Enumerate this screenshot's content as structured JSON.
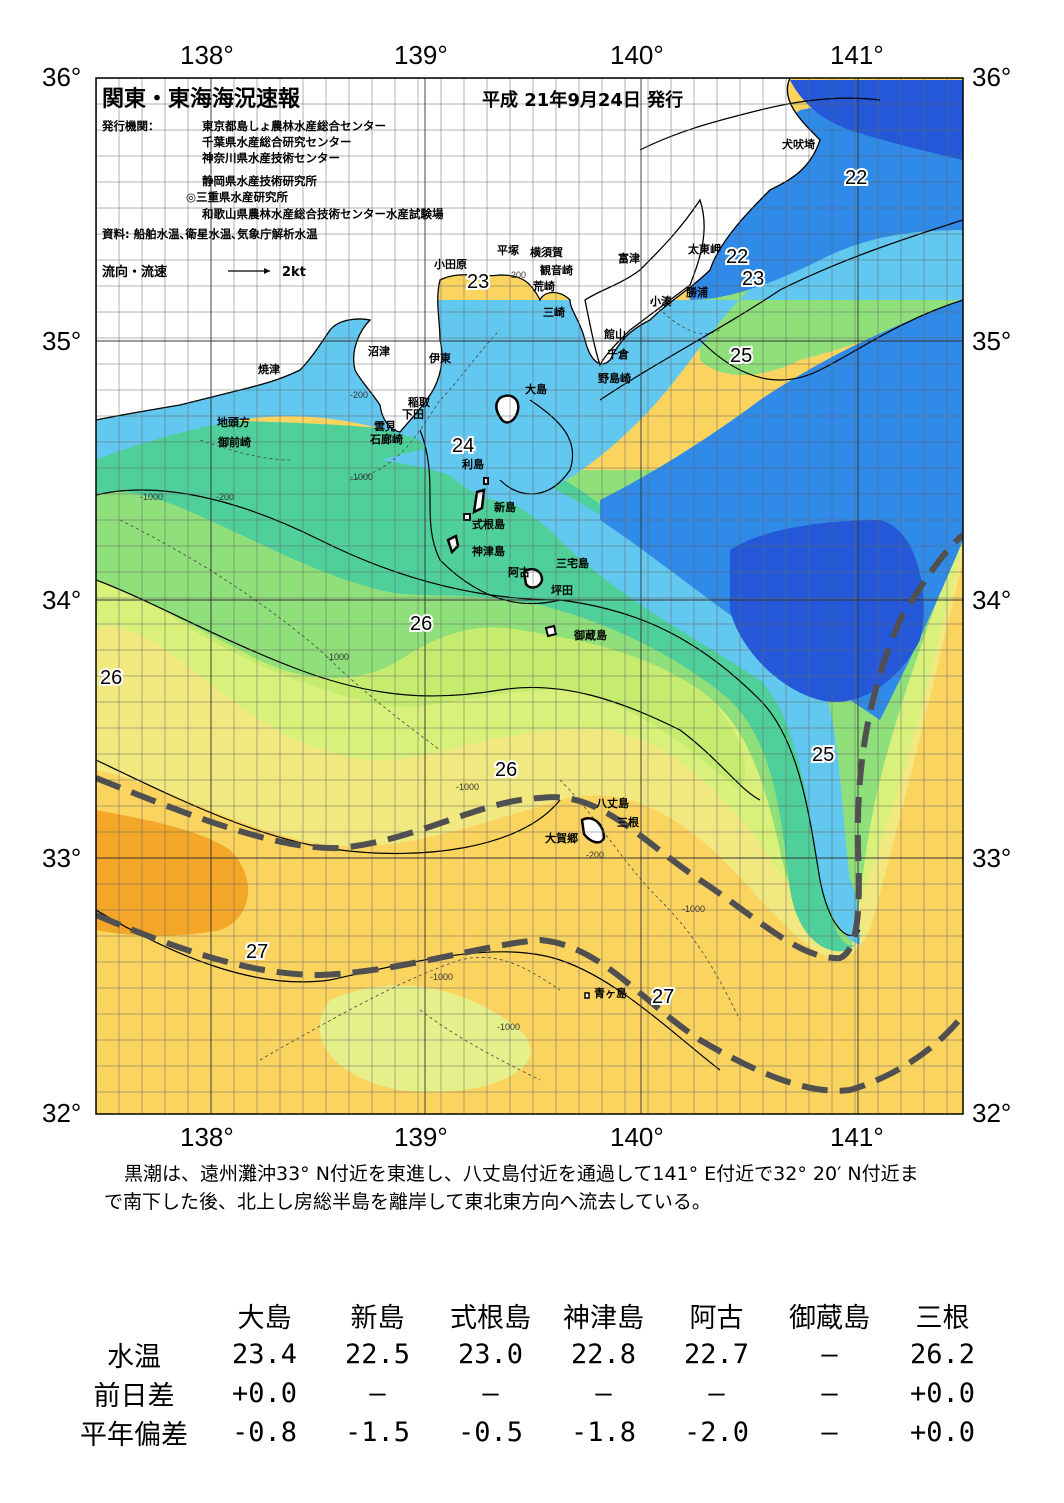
{
  "header": {
    "title": "関東・東海海況速報",
    "issue_date": "平成 21年9月24日 発行",
    "publisher_label": "発行機関：",
    "publishers": [
      "東京都島しょ農林水産総合センター",
      "千葉県水産総合研究センター",
      "神奈川県水産技術センター",
      "静岡県水産技術研究所",
      "◎三重県水産研究所",
      "和歌山県農林水産総合技術センター水産試験場"
    ],
    "sources": "資料: 船舶水温､衛星水温､気象庁解析水温",
    "legend_label": "流向・流速",
    "legend_speed": "2kt"
  },
  "axes": {
    "longitude_labels": [
      "138°",
      "139°",
      "140°",
      "141°"
    ],
    "latitude_labels": [
      "36°",
      "35°",
      "34°",
      "33°",
      "32°"
    ]
  },
  "map": {
    "isotherm_labels": [
      "22",
      "22",
      "23",
      "23",
      "24",
      "25",
      "25",
      "26",
      "26",
      "26",
      "27",
      "27"
    ],
    "depth_labels": [
      "-200",
      "-200",
      "-200",
      "-1000",
      "-1000",
      "-1000",
      "-1000",
      "-1000",
      "-200",
      "-1000",
      "-1000"
    ],
    "places": {
      "inubozaki": "犬吠埼",
      "taitomisaki": "太東岬",
      "katsuura": "勝浦",
      "kominato": "小湊",
      "futtsu": "富津",
      "yokosuka": "横須賀",
      "kannonzaki": "観音崎",
      "hiratsuka": "平塚",
      "odawara": "小田原",
      "arasaki": "荒崎",
      "misaki": "三崎",
      "tateyama": "館山",
      "chikura": "千倉",
      "nojimazaki": "野島崎",
      "numazu": "沼津",
      "ito": "伊東",
      "yaizu": "焼津",
      "inatori": "稲取",
      "shimoda": "下田",
      "kumomi": "雲見",
      "irozaki": "石廊崎",
      "jitogata": "地頭方",
      "omaezaki": "御前崎",
      "oshima": "大島",
      "toshima": "利島",
      "niijima": "新島",
      "shikinejima": "式根島",
      "kozushima": "神津島",
      "miyakejima": "三宅島",
      "ako": "阿古",
      "tsubota": "坪田",
      "mikurajima": "御蔵島",
      "hachijojima": "八丈島",
      "mitsune": "三根",
      "okago": "大賀郷",
      "aogashima": "青ヶ島"
    }
  },
  "summary": "黒潮は、遠州灘沖33° N付近を東進し、八丈島付近を通過して141° E付近で32° 20′ N付近まで南下した後、北上し房総半島を離岸して東北東方向へ流去している。",
  "table": {
    "columns": [
      "大島",
      "新島",
      "式根島",
      "神津島",
      "阿古",
      "御蔵島",
      "三根"
    ],
    "rows": [
      {
        "label": "水温",
        "values": [
          "23.4",
          "22.5",
          "23.0",
          "22.8",
          "22.7",
          "–",
          "26.2"
        ]
      },
      {
        "label": "前日差",
        "values": [
          "+0.0",
          "–",
          "–",
          "–",
          "–",
          "–",
          "+0.0"
        ]
      },
      {
        "label": "平年偏差",
        "values": [
          "-0.8",
          "-1.5",
          "-0.5",
          "-1.8",
          "-2.0",
          "–",
          "+0.0"
        ]
      }
    ]
  },
  "colors": {
    "temp_27": "#fbd460",
    "temp_26": "#f2e880",
    "temp_26b": "#d9f07a",
    "temp_25": "#8fe07a",
    "temp_24": "#4fcf9a",
    "temp_23": "#62c8f0",
    "temp_22": "#2f8ae8",
    "temp_21": "#2458d8",
    "hot": "#f4a628",
    "kuroshio_axis": "#505050"
  }
}
